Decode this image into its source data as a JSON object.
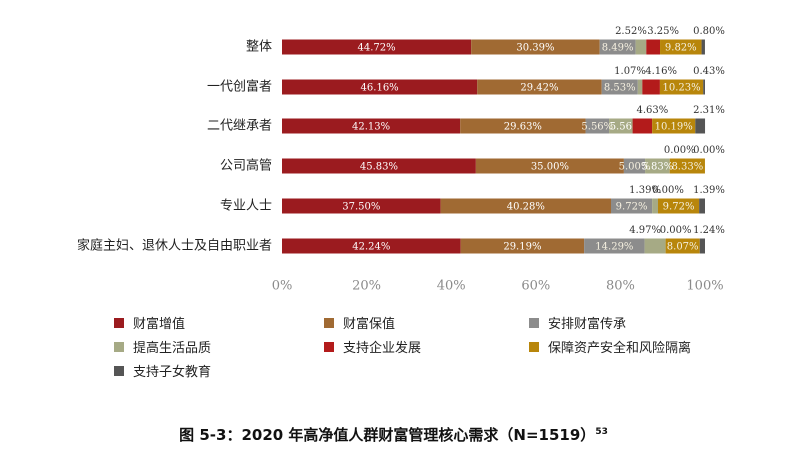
{
  "chart_data": {
    "type": "bar",
    "orientation": "horizontal",
    "stacked": true,
    "categories": [
      "整体",
      "一代创富者",
      "二代继承者",
      "公司高管",
      "专业人士",
      "家庭主妇、退休人士及自由职业者"
    ],
    "series": [
      {
        "name": "财富增值",
        "color": "#9b1b1f",
        "values": [
          44.72,
          46.16,
          42.13,
          45.83,
          37.5,
          42.24
        ]
      },
      {
        "name": "财富保值",
        "color": "#a06a33",
        "values": [
          30.39,
          29.42,
          29.63,
          35.0,
          40.28,
          29.19
        ]
      },
      {
        "name": "安排财富传承",
        "color": "#8c8c8c",
        "values": [
          8.49,
          8.53,
          5.56,
          5.0,
          9.72,
          14.29
        ]
      },
      {
        "name": "提高生活品质",
        "color": "#a6aa85",
        "values": [
          2.52,
          1.07,
          5.56,
          5.83,
          1.39,
          4.97
        ]
      },
      {
        "name": "支持企业发展",
        "color": "#b31b1b",
        "values": [
          3.25,
          4.16,
          4.63,
          0.0,
          0.0,
          0.0
        ]
      },
      {
        "name": "保障资产安全和风险隔离",
        "color": "#b8860b",
        "values": [
          9.82,
          10.23,
          10.19,
          8.33,
          9.72,
          8.07
        ]
      },
      {
        "name": "支持子女教育",
        "color": "#555555",
        "values": [
          0.8,
          0.43,
          2.31,
          0.0,
          1.39,
          1.24
        ]
      }
    ],
    "labels": [
      [
        "44.72%",
        "30.39%",
        "8.49%",
        "2.52%",
        "3.25%",
        "9.82%",
        "0.80%"
      ],
      [
        "46.16%",
        "29.42%",
        "8.53%",
        "1.07%",
        "4.16%",
        "10.23%",
        "0.43%"
      ],
      [
        "42.13%",
        "29.63%",
        "5.56%",
        "5.56",
        "4.63%",
        "10.19%",
        "2.31%"
      ],
      [
        "45.83%",
        "35.00%",
        "5.00%",
        "5.83%",
        "0.00%",
        "8.33%",
        "0.00%"
      ],
      [
        "37.50%",
        "40.28%",
        "9.72%",
        "1.39%",
        "0.00%",
        "9.72%",
        "1.39%"
      ],
      [
        "42.24%",
        "29.19%",
        "14.29%",
        "4.97%",
        "0.00%",
        "8.07%",
        "1.24%"
      ]
    ],
    "xticks": [
      "0%",
      "20%",
      "40%",
      "60%",
      "80%",
      "100%"
    ],
    "xlim": [
      0,
      100
    ],
    "legend_position": "bottom",
    "caption": "图 5-3：2020 年高净值人群财富管理核心需求（N=1519）",
    "caption_sup": "53"
  }
}
